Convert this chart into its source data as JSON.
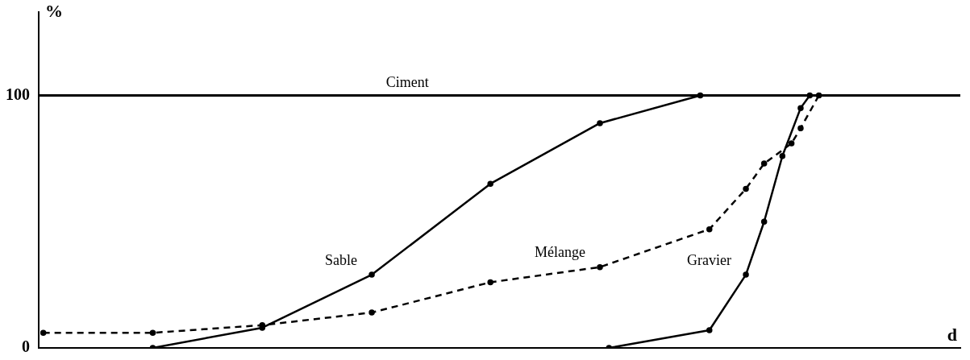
{
  "chart_data": {
    "type": "line",
    "xlabel": "d",
    "ylabel": "%",
    "categories": [
      null,
      null,
      null,
      null,
      null,
      null,
      null,
      null,
      null,
      null,
      null,
      null,
      null,
      null,
      null,
      null,
      null,
      null,
      null,
      null,
      null,
      null,
      null,
      null,
      null,
      null,
      null,
      null,
      null,
      null,
      null,
      null,
      null,
      null,
      null,
      null,
      null,
      null,
      null,
      null,
      null,
      null,
      null,
      null,
      null,
      null,
      null,
      null,
      null,
      null,
      null,
      null,
      null,
      null,
      null,
      null,
      null,
      null,
      null,
      null,
      null,
      null,
      null,
      null,
      null,
      null,
      null,
      null,
      null,
      null,
      null,
      null,
      null,
      null,
      null,
      null,
      null,
      null,
      null,
      null,
      null,
      null,
      null,
      null,
      null,
      null,
      null,
      null,
      null,
      null,
      null,
      null,
      null,
      null,
      null,
      null,
      null,
      null,
      null,
      null,
      null
    ],
    "ylim": [
      0,
      133
    ],
    "yticks": [
      0,
      100
    ],
    "grid": false,
    "legend": false,
    "tick_labels": "y",
    "ref_lines": [
      {
        "axis": "y",
        "value": 100,
        "label": "Ciment",
        "color": "#000000",
        "line_style": "solid"
      }
    ],
    "series": [
      {
        "name": "Sable",
        "color": "#000000",
        "line_style": "solid",
        "marker": "circle",
        "values": [
          null,
          null,
          null,
          null,
          null,
          null,
          null,
          null,
          null,
          null,
          null,
          null,
          0,
          null,
          null,
          null,
          null,
          null,
          null,
          null,
          null,
          null,
          null,
          null,
          8,
          null,
          null,
          null,
          null,
          null,
          null,
          null,
          null,
          null,
          null,
          null,
          29,
          null,
          null,
          null,
          null,
          null,
          null,
          null,
          null,
          null,
          null,
          null,
          null,
          65,
          null,
          null,
          null,
          null,
          null,
          null,
          null,
          null,
          null,
          null,
          null,
          89,
          null,
          null,
          null,
          null,
          null,
          null,
          null,
          null,
          null,
          null,
          100,
          null,
          null,
          null,
          null,
          null,
          null,
          null,
          null,
          null,
          null,
          null,
          null,
          null,
          null,
          null,
          null,
          null,
          null,
          null,
          null,
          null,
          null,
          null,
          null,
          null,
          null,
          null,
          null
        ]
      },
      {
        "name": "Mélange",
        "color": "#000000",
        "line_style": "dashed",
        "marker": "circle",
        "values": [
          6,
          null,
          null,
          null,
          null,
          null,
          null,
          null,
          null,
          null,
          null,
          null,
          6,
          null,
          null,
          null,
          null,
          null,
          null,
          null,
          null,
          null,
          null,
          null,
          9,
          null,
          null,
          null,
          null,
          null,
          null,
          null,
          null,
          null,
          null,
          null,
          14,
          null,
          null,
          null,
          null,
          null,
          null,
          null,
          null,
          null,
          null,
          null,
          null,
          26,
          null,
          null,
          null,
          null,
          null,
          null,
          null,
          null,
          null,
          null,
          null,
          32,
          null,
          null,
          null,
          null,
          null,
          null,
          null,
          null,
          null,
          null,
          null,
          47,
          null,
          null,
          null,
          63,
          null,
          73,
          null,
          null,
          81,
          87,
          null,
          100,
          null,
          null,
          null,
          null,
          null,
          null,
          null,
          null,
          null,
          null,
          null,
          null,
          null,
          null,
          null
        ]
      },
      {
        "name": "Gravier",
        "color": "#000000",
        "line_style": "solid",
        "marker": "circle",
        "values": [
          null,
          null,
          null,
          null,
          null,
          null,
          null,
          null,
          null,
          null,
          null,
          null,
          null,
          null,
          null,
          null,
          null,
          null,
          null,
          null,
          null,
          null,
          null,
          null,
          null,
          null,
          null,
          null,
          null,
          null,
          null,
          null,
          null,
          null,
          null,
          null,
          null,
          null,
          null,
          null,
          null,
          null,
          null,
          null,
          null,
          null,
          null,
          null,
          null,
          null,
          null,
          null,
          null,
          null,
          null,
          null,
          null,
          null,
          null,
          null,
          null,
          null,
          0,
          null,
          null,
          null,
          null,
          null,
          null,
          null,
          null,
          null,
          null,
          7,
          null,
          null,
          null,
          29,
          null,
          50,
          null,
          76,
          null,
          95,
          100,
          null,
          null,
          null,
          null,
          null,
          null,
          null,
          null,
          null,
          null,
          null,
          null,
          null,
          null,
          null,
          null
        ]
      }
    ]
  }
}
